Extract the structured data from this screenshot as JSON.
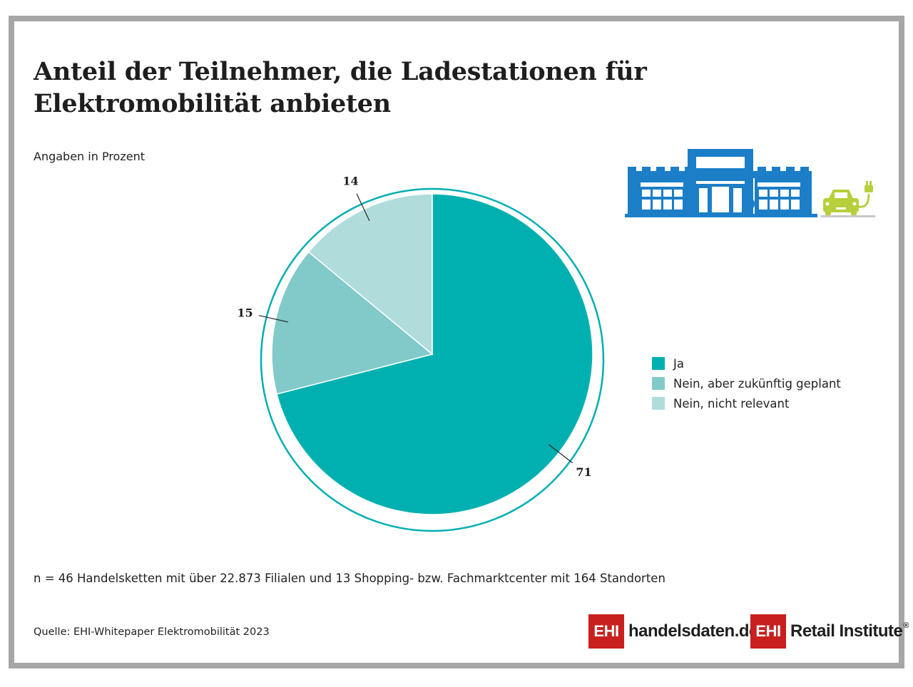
{
  "title": "Anteil der Teilnehmer, die Ladestationen für Elektromobilität anbieten",
  "subtitle": "Angaben in Prozent",
  "footnote": "n = 46 Handelsketten mit über 22.873 Filialen und 13 Shopping- bzw. Fachmarktcenter mit 164 Standorten",
  "source": "Quelle: EHI-Whitepaper Elektromobilität 2023",
  "logos": [
    {
      "box": "EHI",
      "word": "handelsdaten.de"
    },
    {
      "box": "EHI",
      "word": "Retail Institute",
      "registered": "®"
    }
  ],
  "icons": {
    "illustration": "store-with-ev-charging-icon"
  },
  "colors": {
    "ring": "#00aeb3",
    "brand_red": "#c8201e",
    "store_blue": "#1b7ec7",
    "car_green": "#b7cf3a"
  },
  "chart_data": {
    "type": "pie",
    "slices": [
      {
        "label": "Ja",
        "value": 71,
        "color": "#00b0b0"
      },
      {
        "label": "Nein, aber zukünftig geplant",
        "value": 15,
        "color": "#82caca"
      },
      {
        "label": "Nein, nicht relevant",
        "value": 14,
        "color": "#b0dcdc"
      }
    ],
    "start": "12 o'clock, clockwise",
    "legend_position": "right"
  }
}
